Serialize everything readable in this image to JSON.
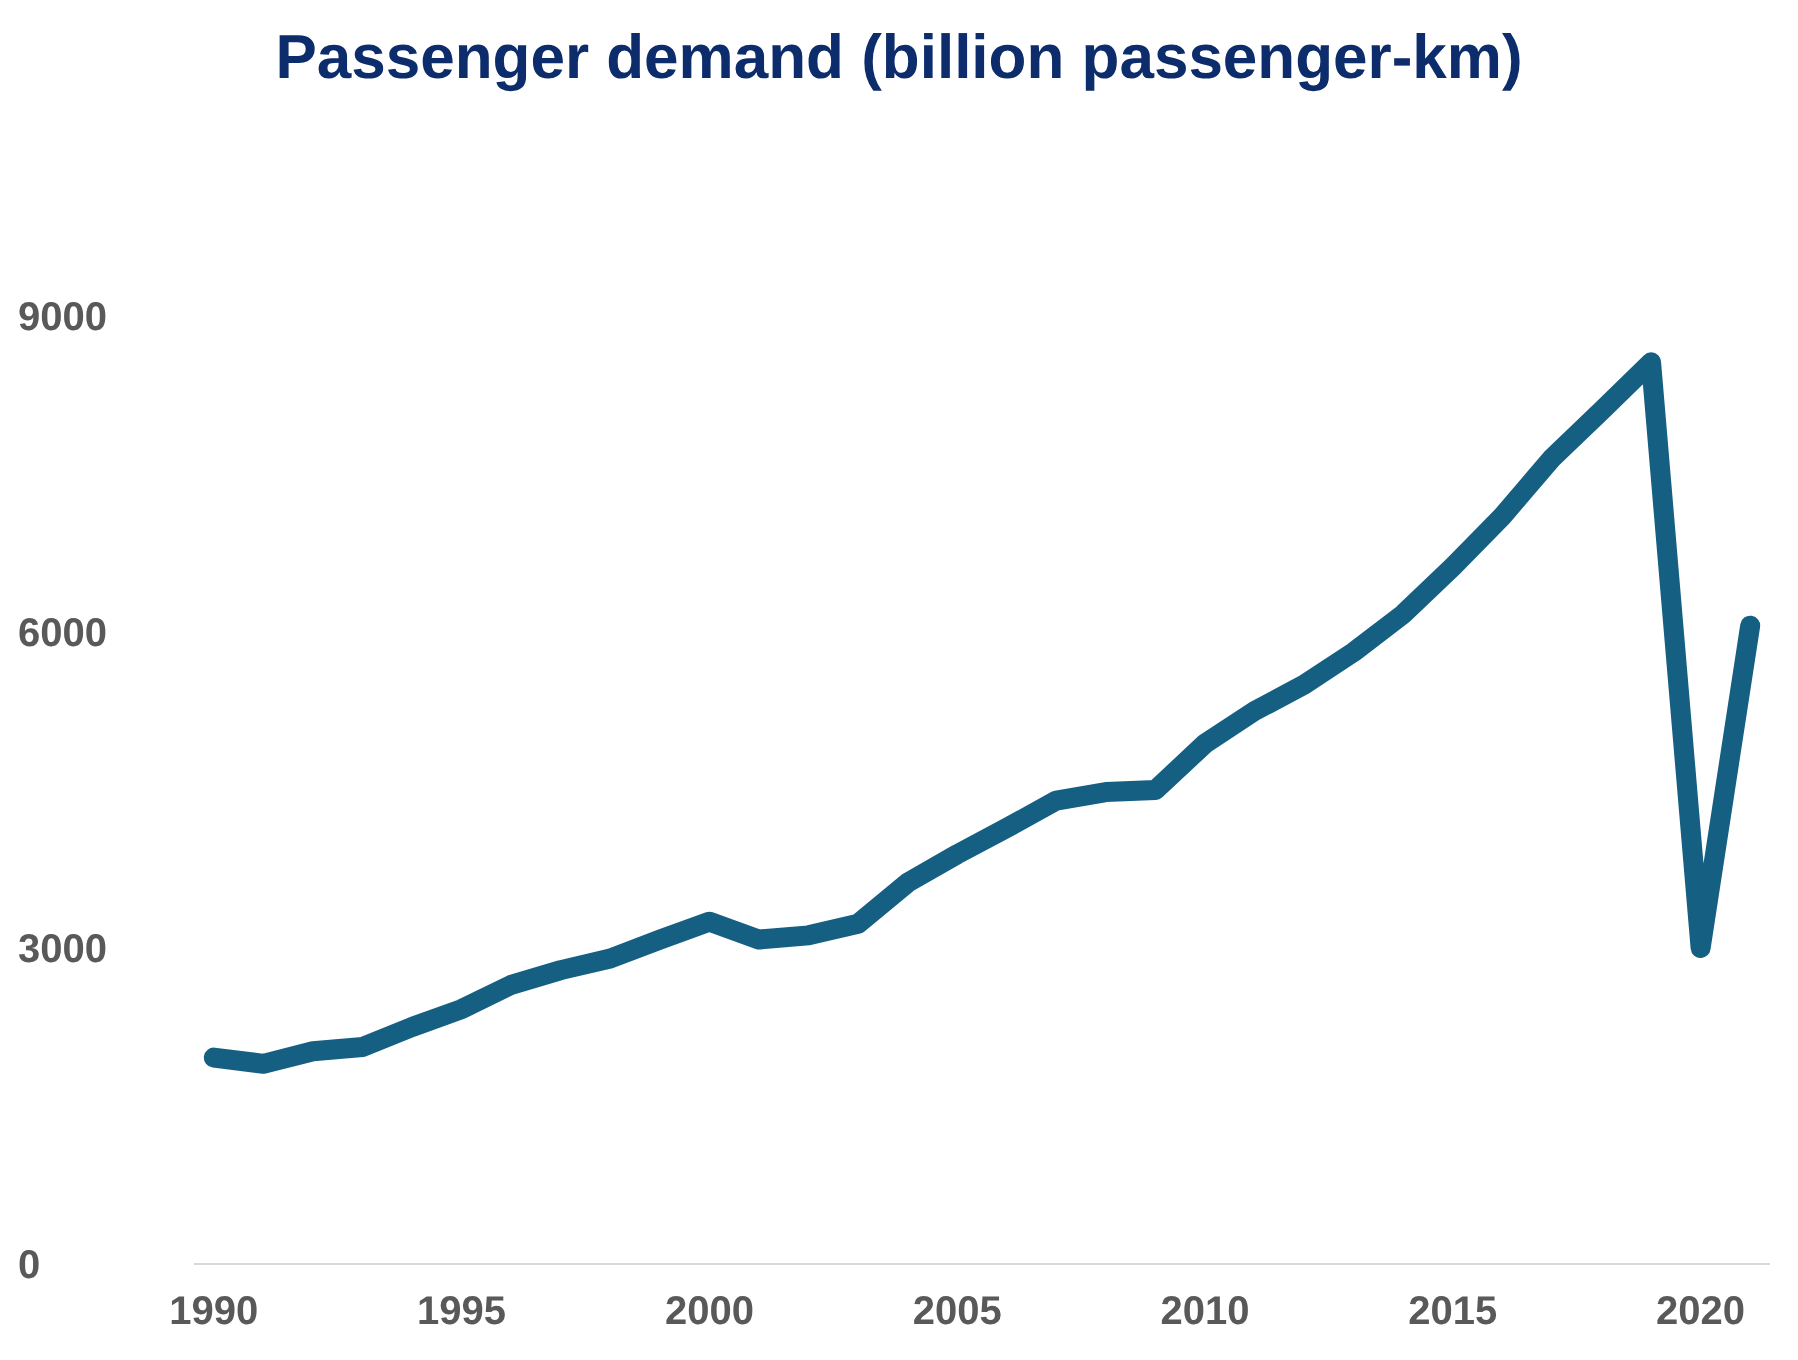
{
  "chart_data": {
    "type": "line",
    "title": "Passenger demand (billion passenger-km)",
    "x": [
      1990,
      1991,
      1992,
      1993,
      1994,
      1995,
      1996,
      1997,
      1998,
      1999,
      2000,
      2001,
      2002,
      2003,
      2004,
      2005,
      2006,
      2007,
      2008,
      2009,
      2010,
      2011,
      2012,
      2013,
      2014,
      2015,
      2016,
      2017,
      2018,
      2019,
      2020,
      2021
    ],
    "series": [
      {
        "color": "#155f82",
        "values": [
          1960,
          1900,
          2020,
          2060,
          2250,
          2420,
          2650,
          2790,
          2900,
          3080,
          3250,
          3080,
          3120,
          3230,
          3620,
          3890,
          4140,
          4400,
          4480,
          4500,
          4940,
          5250,
          5500,
          5810,
          6170,
          6620,
          7100,
          7650,
          8100,
          8560,
          3000,
          6060
        ]
      }
    ],
    "xlim": [
      1989.6,
      2021.4
    ],
    "xticks": [
      1990,
      1995,
      2000,
      2005,
      2010,
      2015,
      2020
    ],
    "ylim": [
      0,
      9000
    ],
    "yticks": [
      0,
      3000,
      6000,
      9000
    ],
    "grid": false,
    "legend": false,
    "marker": "none",
    "line_style": "solid"
  }
}
